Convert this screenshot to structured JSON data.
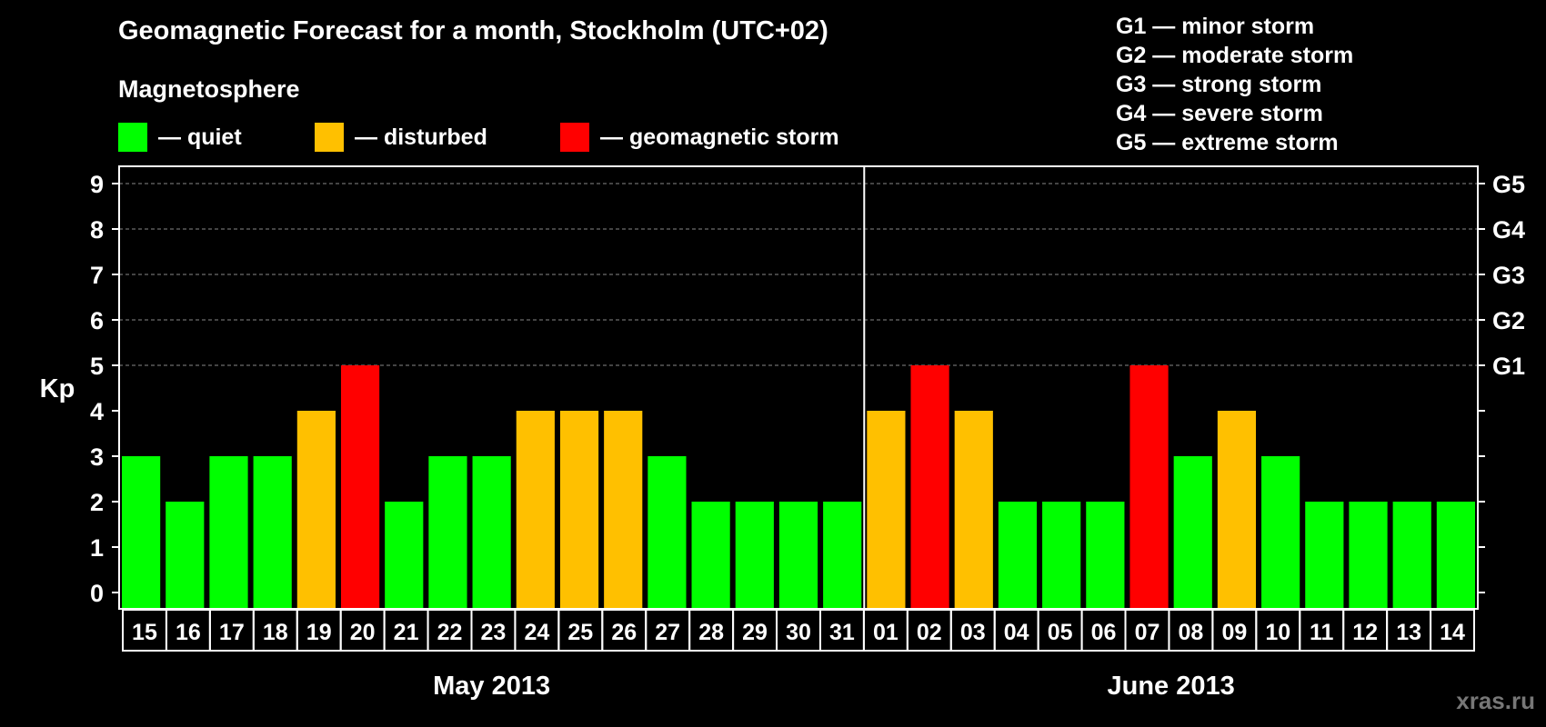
{
  "chart_data": {
    "type": "bar",
    "title": "Geomagnetic Forecast for a month, Stockholm (UTC+02)",
    "subtitle": "Magnetosphere",
    "ylabel": "Kp",
    "ylim": [
      0,
      9
    ],
    "yticks": [
      "0",
      "1",
      "2",
      "3",
      "4",
      "5",
      "6",
      "7",
      "8",
      "9"
    ],
    "right_ticks": [
      {
        "kp": 5,
        "label": "G1"
      },
      {
        "kp": 6,
        "label": "G2"
      },
      {
        "kp": 7,
        "label": "G3"
      },
      {
        "kp": 8,
        "label": "G4"
      },
      {
        "kp": 9,
        "label": "G5"
      }
    ],
    "categories": [
      "15",
      "16",
      "17",
      "18",
      "19",
      "20",
      "21",
      "22",
      "23",
      "24",
      "25",
      "26",
      "27",
      "28",
      "29",
      "30",
      "31",
      "01",
      "02",
      "03",
      "04",
      "05",
      "06",
      "07",
      "08",
      "09",
      "10",
      "11",
      "12",
      "13",
      "14"
    ],
    "values": [
      3,
      2,
      3,
      3,
      4,
      5,
      2,
      3,
      3,
      4,
      4,
      4,
      3,
      2,
      2,
      2,
      2,
      4,
      5,
      4,
      2,
      2,
      2,
      5,
      3,
      4,
      3,
      2,
      2,
      2,
      2
    ],
    "months": [
      {
        "label": "May 2013",
        "first_index": 0,
        "last_index": 16
      },
      {
        "label": "June 2013",
        "first_index": 17,
        "last_index": 30
      }
    ],
    "level_colors": {
      "quiet": "#00ff00",
      "disturbed": "#ffc000",
      "storm": "#ff0000"
    }
  },
  "legend": {
    "quiet": "— quiet",
    "disturbed": "— disturbed",
    "storm": "— geomagnetic storm"
  },
  "g_legend": [
    "G1 — minor storm",
    "G2 — moderate storm",
    "G3 — strong storm",
    "G4 — severe storm",
    "G5 — extreme storm"
  ],
  "watermark": "xras.ru"
}
